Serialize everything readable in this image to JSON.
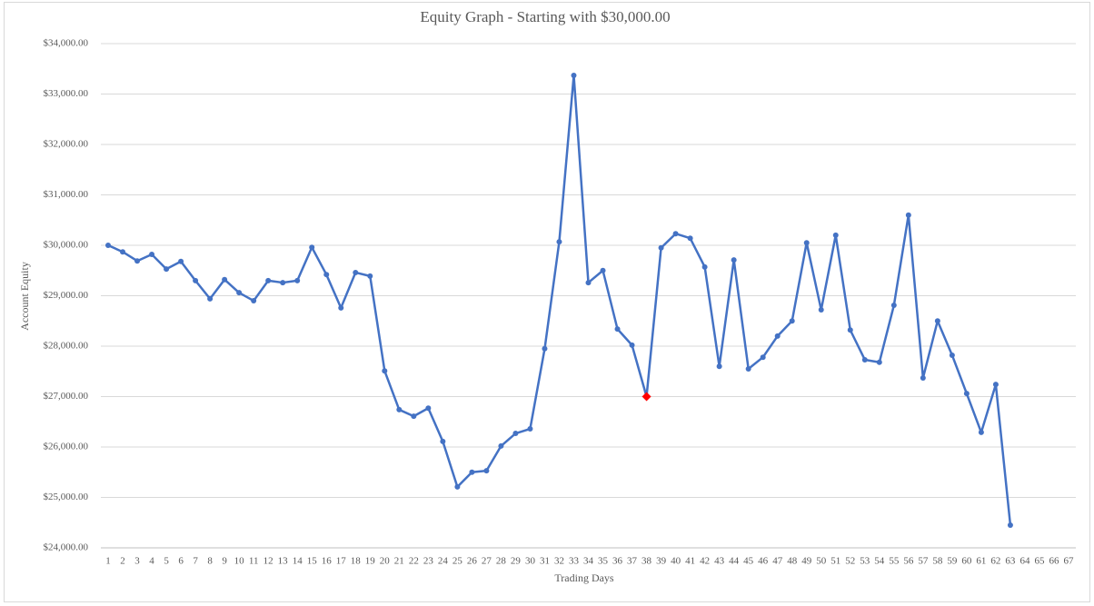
{
  "chart_data": {
    "type": "line",
    "title": "Equity Graph - Starting with $30,000.00",
    "x_label": "Trading Days",
    "y_label": "Account Equity",
    "categories": [
      1,
      2,
      3,
      4,
      5,
      6,
      7,
      8,
      9,
      10,
      11,
      12,
      13,
      14,
      15,
      16,
      17,
      18,
      19,
      20,
      21,
      22,
      23,
      24,
      25,
      26,
      27,
      28,
      29,
      30,
      31,
      32,
      33,
      34,
      35,
      36,
      37,
      38,
      39,
      40,
      41,
      42,
      43,
      44,
      45,
      46,
      47,
      48,
      49,
      50,
      51,
      52,
      53,
      54,
      55,
      56,
      57,
      58,
      59,
      60,
      61,
      62,
      63,
      64,
      65,
      66,
      67
    ],
    "series": [
      {
        "name": "Account Equity",
        "color": "#4472c4",
        "values": [
          30000,
          29870,
          29690,
          29820,
          29530,
          29680,
          29300,
          28940,
          29320,
          29060,
          28900,
          29300,
          29260,
          29300,
          29960,
          29420,
          28760,
          29460,
          29390,
          27510,
          26740,
          26610,
          26770,
          26110,
          25210,
          25500,
          25530,
          26020,
          26270,
          26360,
          27950,
          30070,
          33370,
          29260,
          29500,
          28340,
          28020,
          27000,
          29950,
          30230,
          30140,
          29570,
          27600,
          29710,
          27550,
          27780,
          28200,
          28500,
          30050,
          28720,
          30200,
          28320,
          27730,
          27680,
          28810,
          30600,
          27370,
          28500,
          27820,
          27060,
          26290,
          27240,
          24450,
          null,
          null,
          null,
          null
        ]
      }
    ],
    "highlight": {
      "index": 37,
      "color": "#ff0000"
    },
    "ylim": [
      24000,
      34000
    ],
    "yticks": [
      {
        "value": 24000,
        "label": "$24,000.00"
      },
      {
        "value": 25000,
        "label": "$25,000.00"
      },
      {
        "value": 26000,
        "label": "$26,000.00"
      },
      {
        "value": 27000,
        "label": "$27,000.00"
      },
      {
        "value": 28000,
        "label": "$28,000.00"
      },
      {
        "value": 29000,
        "label": "$29,000.00"
      },
      {
        "value": 30000,
        "label": "$30,000.00"
      },
      {
        "value": 31000,
        "label": "$31,000.00"
      },
      {
        "value": 32000,
        "label": "$32,000.00"
      },
      {
        "value": 33000,
        "label": "$33,000.00"
      },
      {
        "value": 34000,
        "label": "$34,000.00"
      }
    ],
    "grid": true
  }
}
